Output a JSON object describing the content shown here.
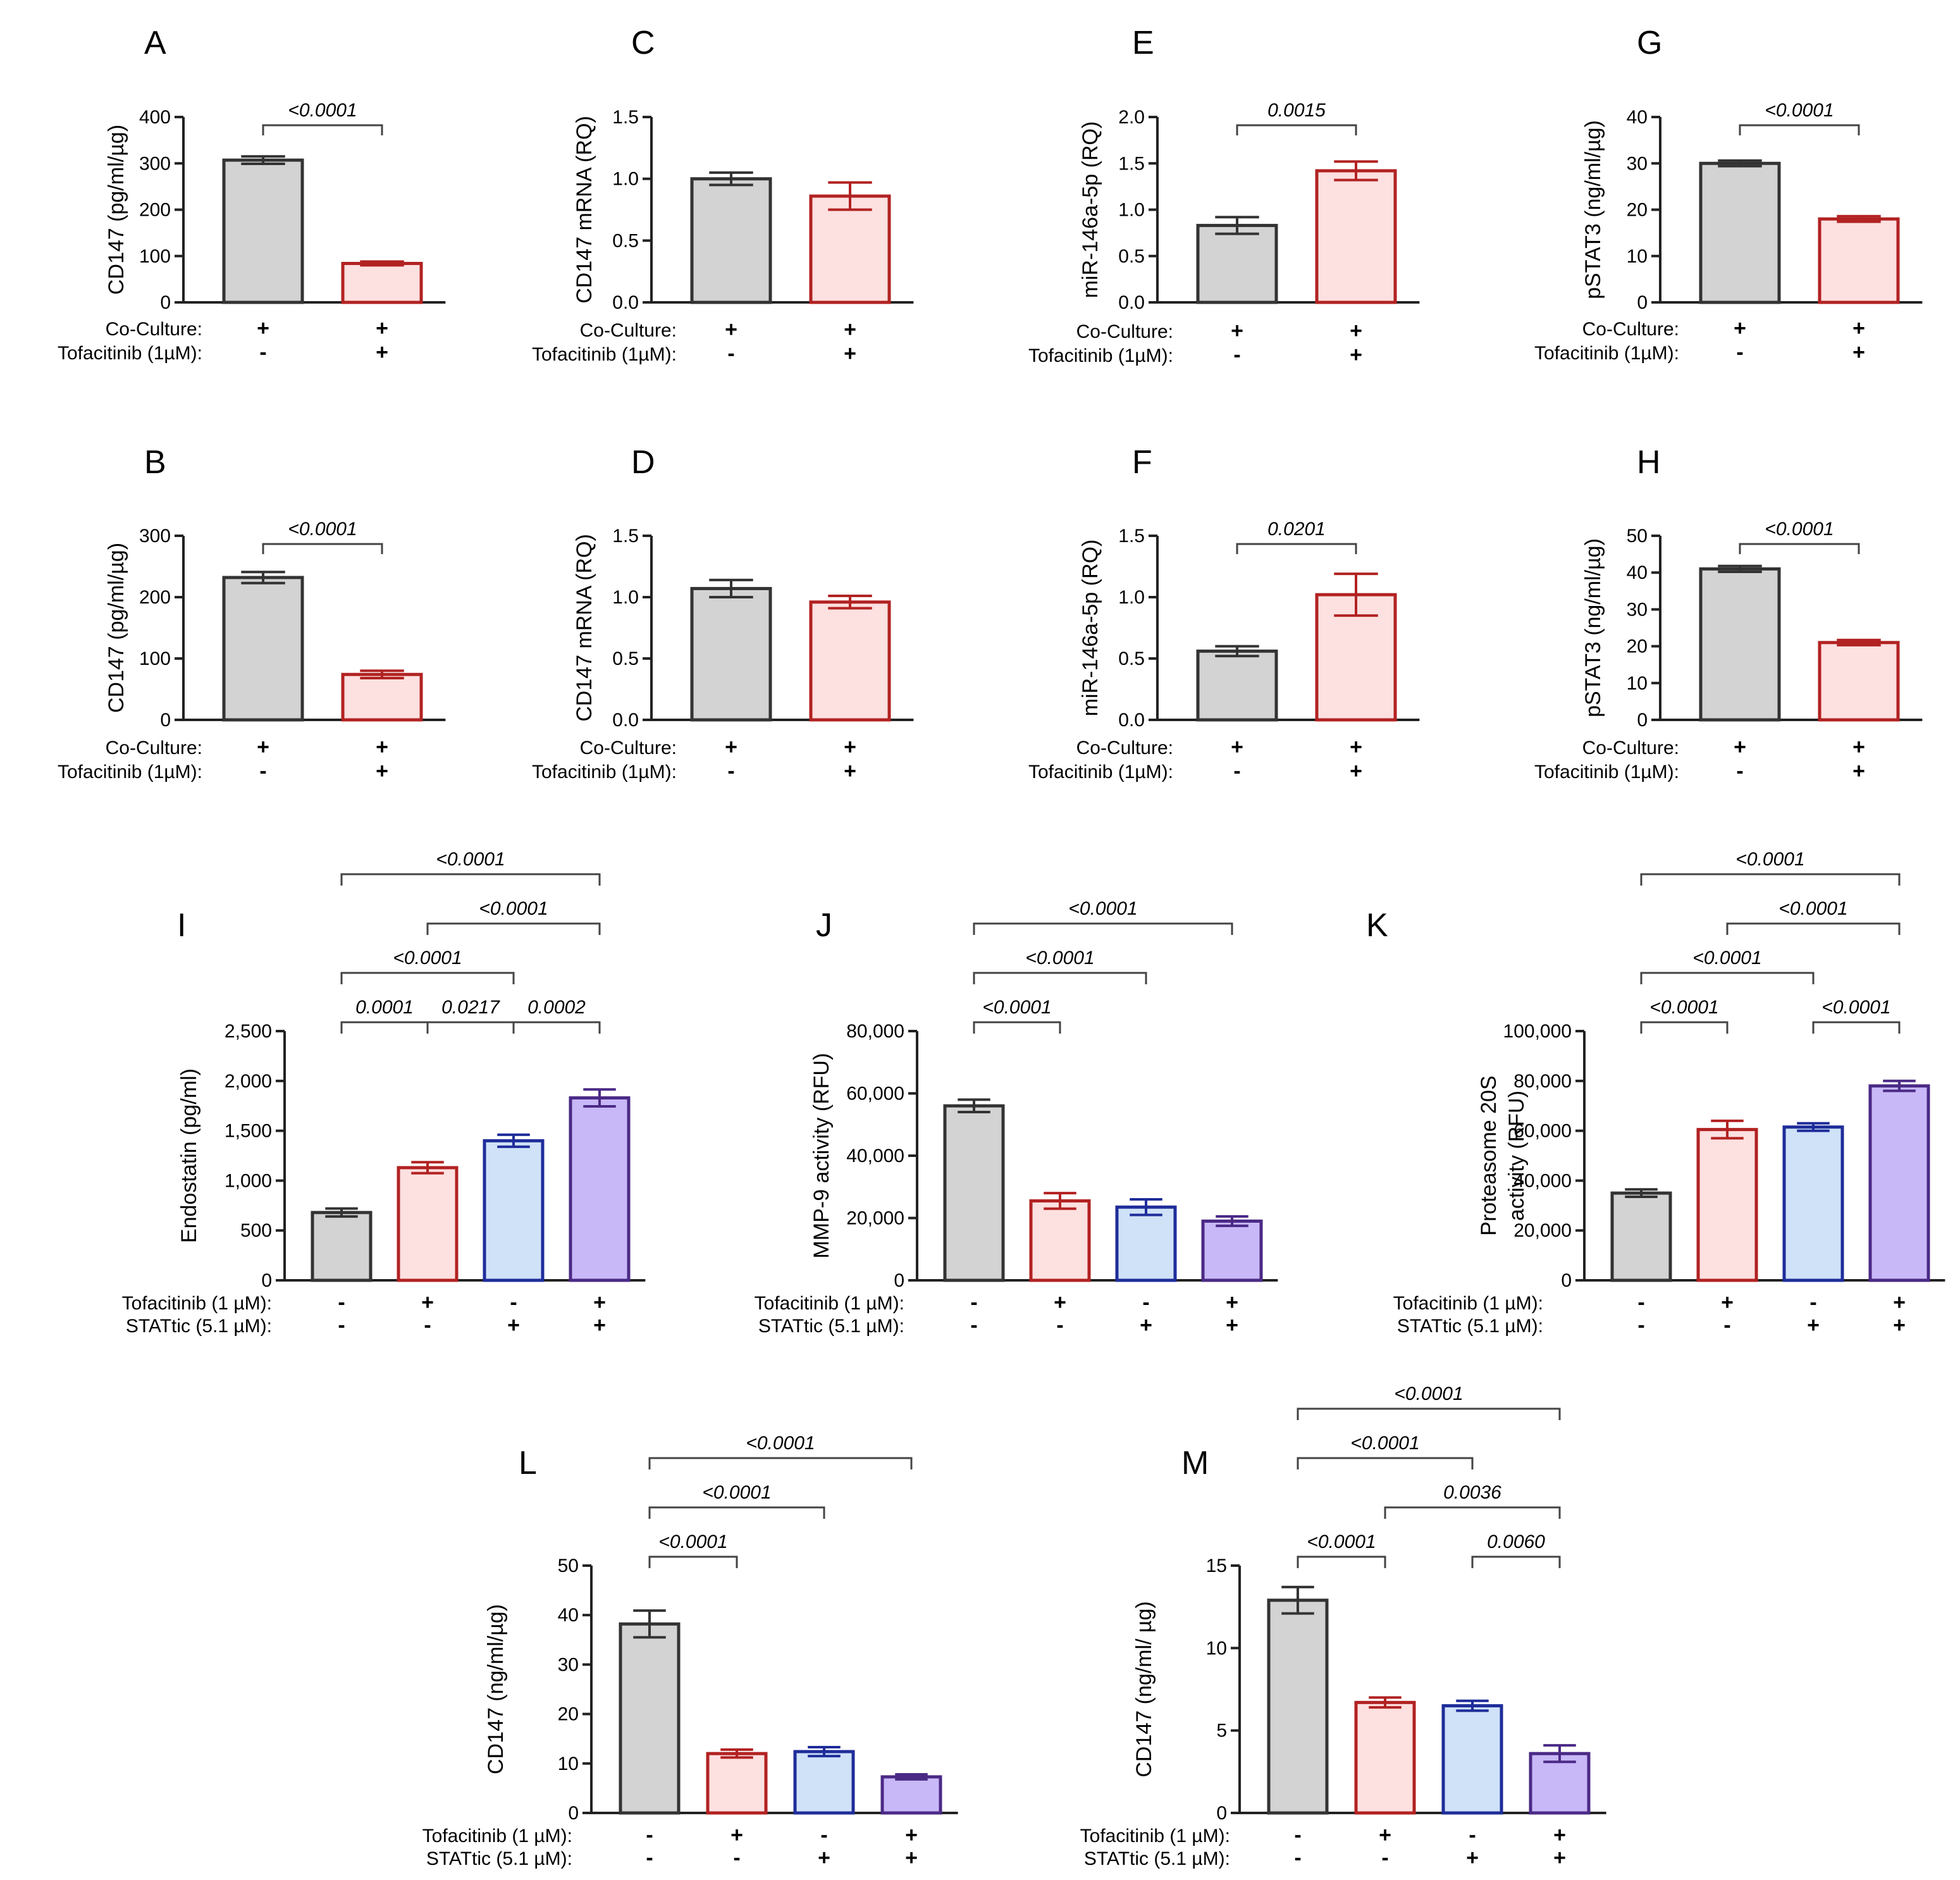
{
  "colors": {
    "ink": "#222222",
    "grey_fill": "#d3d3d3",
    "grey_edge": "#333333",
    "red_fill": "#fde0e0",
    "red_edge": "#b22222",
    "blue_fill": "#cfe2f8",
    "blue_edge": "#1f2d9a",
    "purple_fill": "#c8b8f8",
    "purple_edge": "#4b2a86"
  },
  "chart_data": [
    {
      "panel": "A",
      "type": "bar",
      "ylabel": "CD147 (pg/ml/µg)",
      "ylim": [
        0,
        400
      ],
      "ticks": [
        0,
        100,
        200,
        300,
        400
      ],
      "values": [
        307,
        84
      ],
      "errors": [
        8,
        4
      ],
      "colors": [
        "grey",
        "red"
      ],
      "conditions": [
        {
          "label": "Co-Culture:",
          "signs": [
            "+",
            "+"
          ]
        },
        {
          "label": "Tofacitinib (1µM):",
          "signs": [
            "-",
            "+"
          ]
        }
      ],
      "comparisons": [
        {
          "from": 0,
          "to": 1,
          "p": "<0.0001"
        }
      ]
    },
    {
      "panel": "B",
      "type": "bar",
      "ylabel": "CD147 (pg/ml/µg)",
      "ylim": [
        0,
        300
      ],
      "ticks": [
        0,
        100,
        200,
        300
      ],
      "values": [
        232,
        74
      ],
      "errors": [
        9,
        6
      ],
      "colors": [
        "grey",
        "red"
      ],
      "conditions": [
        {
          "label": "Co-Culture:",
          "signs": [
            "+",
            "+"
          ]
        },
        {
          "label": "Tofacitinib (1µM):",
          "signs": [
            "-",
            "+"
          ]
        }
      ],
      "comparisons": [
        {
          "from": 0,
          "to": 1,
          "p": "<0.0001"
        }
      ]
    },
    {
      "panel": "C",
      "type": "bar",
      "ylabel": "CD147 mRNA (RQ)",
      "ylim": [
        0,
        1.5
      ],
      "ticks": [
        "0.0",
        "0.5",
        "1.0",
        "1.5"
      ],
      "values": [
        1.0,
        0.86
      ],
      "errors": [
        0.05,
        0.11
      ],
      "colors": [
        "grey",
        "red"
      ],
      "conditions": [
        {
          "label": "Co-Culture:",
          "signs": [
            "+",
            "+"
          ]
        },
        {
          "label": "Tofacitinib (1µM):",
          "signs": [
            "-",
            "+"
          ]
        }
      ],
      "comparisons": []
    },
    {
      "panel": "D",
      "type": "bar",
      "ylabel": "CD147 mRNA (RQ)",
      "ylim": [
        0,
        1.5
      ],
      "ticks": [
        "0.0",
        "0.5",
        "1.0",
        "1.5"
      ],
      "values": [
        1.07,
        0.96
      ],
      "errors": [
        0.07,
        0.05
      ],
      "colors": [
        "grey",
        "red"
      ],
      "conditions": [
        {
          "label": "Co-Culture:",
          "signs": [
            "+",
            "+"
          ]
        },
        {
          "label": "Tofacitinib (1µM):",
          "signs": [
            "-",
            "+"
          ]
        }
      ],
      "comparisons": []
    },
    {
      "panel": "E",
      "type": "bar",
      "ylabel": "miR-146a-5p (RQ)",
      "ylim": [
        0,
        2.0
      ],
      "ticks": [
        "0.0",
        "0.5",
        "1.0",
        "1.5",
        "2.0"
      ],
      "values": [
        0.83,
        1.42
      ],
      "errors": [
        0.09,
        0.1
      ],
      "colors": [
        "grey",
        "red"
      ],
      "conditions": [
        {
          "label": "Co-Culture:",
          "signs": [
            "+",
            "+"
          ]
        },
        {
          "label": "Tofacitinib (1µM):",
          "signs": [
            "-",
            "+"
          ]
        }
      ],
      "comparisons": [
        {
          "from": 0,
          "to": 1,
          "p": "0.0015"
        }
      ]
    },
    {
      "panel": "F",
      "type": "bar",
      "ylabel": "miR-146a-5p (RQ)",
      "ylim": [
        0,
        1.5
      ],
      "ticks": [
        "0.0",
        "0.5",
        "1.0",
        "1.5"
      ],
      "values": [
        0.56,
        1.02
      ],
      "errors": [
        0.04,
        0.17
      ],
      "colors": [
        "grey",
        "red"
      ],
      "conditions": [
        {
          "label": "Co-Culture:",
          "signs": [
            "+",
            "+"
          ]
        },
        {
          "label": "Tofacitinib (1µM):",
          "signs": [
            "-",
            "+"
          ]
        }
      ],
      "comparisons": [
        {
          "from": 0,
          "to": 1,
          "p": "0.0201"
        }
      ]
    },
    {
      "panel": "G",
      "type": "bar",
      "ylabel": "pSTAT3 (ng/ml/µg)",
      "ylim": [
        0,
        40
      ],
      "ticks": [
        0,
        10,
        20,
        30,
        40
      ],
      "values": [
        30,
        18
      ],
      "errors": [
        0.6,
        0.6
      ],
      "colors": [
        "grey",
        "red"
      ],
      "conditions": [
        {
          "label": "Co-Culture:",
          "signs": [
            "+",
            "+"
          ]
        },
        {
          "label": "Tofacitinib (1µM):",
          "signs": [
            "-",
            "+"
          ]
        }
      ],
      "comparisons": [
        {
          "from": 0,
          "to": 1,
          "p": "<0.0001"
        }
      ]
    },
    {
      "panel": "H",
      "type": "bar",
      "ylabel": "pSTAT3 (ng/ml/µg)",
      "ylim": [
        0,
        50
      ],
      "ticks": [
        0,
        10,
        20,
        30,
        40,
        50
      ],
      "values": [
        41,
        21
      ],
      "errors": [
        0.8,
        0.7
      ],
      "colors": [
        "grey",
        "red"
      ],
      "conditions": [
        {
          "label": "Co-Culture:",
          "signs": [
            "+",
            "+"
          ]
        },
        {
          "label": "Tofacitinib (1µM):",
          "signs": [
            "-",
            "+"
          ]
        }
      ],
      "comparisons": [
        {
          "from": 0,
          "to": 1,
          "p": "<0.0001"
        }
      ]
    },
    {
      "panel": "I",
      "type": "bar",
      "ylabel": "Endostatin (pg/ml)",
      "ylim": [
        0,
        2500
      ],
      "ticks": [
        "0",
        "500",
        "1,000",
        "1,500",
        "2,000",
        "2,500"
      ],
      "values": [
        680,
        1130,
        1400,
        1830
      ],
      "errors": [
        40,
        55,
        60,
        85
      ],
      "colors": [
        "grey",
        "red",
        "blue",
        "purple"
      ],
      "conditions": [
        {
          "label": "Tofacitinib (1 µM):",
          "signs": [
            "-",
            "+",
            "-",
            "+"
          ]
        },
        {
          "label": "STATtic (5.1 µM):",
          "signs": [
            "-",
            "-",
            "+",
            "+"
          ]
        }
      ],
      "comparisons": [
        {
          "from": 0,
          "to": 1,
          "p": "0.0001"
        },
        {
          "from": 1,
          "to": 2,
          "p": "0.0217"
        },
        {
          "from": 2,
          "to": 3,
          "p": "0.0002"
        },
        {
          "from": 0,
          "to": 2,
          "p": "<0.0001"
        },
        {
          "from": 1,
          "to": 3,
          "p": "<0.0001"
        },
        {
          "from": 0,
          "to": 3,
          "p": "<0.0001"
        }
      ]
    },
    {
      "panel": "J",
      "type": "bar",
      "ylabel": "MMP-9 activity (RFU)",
      "ylim": [
        0,
        80000
      ],
      "ticks": [
        "0",
        "20,000",
        "40,000",
        "60,000",
        "80,000"
      ],
      "values": [
        56000,
        25500,
        23500,
        19000
      ],
      "errors": [
        2000,
        2500,
        2500,
        1500
      ],
      "colors": [
        "grey",
        "red",
        "blue",
        "purple"
      ],
      "conditions": [
        {
          "label": "Tofacitinib (1 µM):",
          "signs": [
            "-",
            "+",
            "-",
            "+"
          ]
        },
        {
          "label": "STATtic (5.1 µM):",
          "signs": [
            "-",
            "-",
            "+",
            "+"
          ]
        }
      ],
      "comparisons": [
        {
          "from": 0,
          "to": 1,
          "p": "<0.0001"
        },
        {
          "from": 0,
          "to": 2,
          "p": "<0.0001"
        },
        {
          "from": 0,
          "to": 3,
          "p": "<0.0001"
        }
      ]
    },
    {
      "panel": "K",
      "type": "bar",
      "ylabel": "Proteasome 20S",
      "ylabel2": "activity (RFU)",
      "ylim": [
        0,
        100000
      ],
      "ticks": [
        "0",
        "20,000",
        "40,000",
        "60,000",
        "80,000",
        "100,000"
      ],
      "values": [
        35000,
        60500,
        61500,
        78000
      ],
      "errors": [
        1500,
        3500,
        1500,
        2000
      ],
      "colors": [
        "grey",
        "red",
        "blue",
        "purple"
      ],
      "conditions": [
        {
          "label": "Tofacitinib (1 µM):",
          "signs": [
            "-",
            "+",
            "-",
            "+"
          ]
        },
        {
          "label": "STATtic (5.1 µM):",
          "signs": [
            "-",
            "-",
            "+",
            "+"
          ]
        }
      ],
      "comparisons": [
        {
          "from": 0,
          "to": 1,
          "p": "<0.0001"
        },
        {
          "from": 2,
          "to": 3,
          "p": "<0.0001"
        },
        {
          "from": 0,
          "to": 2,
          "p": "<0.0001"
        },
        {
          "from": 1,
          "to": 3,
          "p": "<0.0001"
        },
        {
          "from": 0,
          "to": 3,
          "p": "<0.0001"
        }
      ]
    },
    {
      "panel": "L",
      "type": "bar",
      "ylabel": "CD147 (ng/ml/µg)",
      "ylim": [
        0,
        50
      ],
      "ticks": [
        0,
        10,
        20,
        30,
        40,
        50
      ],
      "values": [
        38.2,
        12.0,
        12.4,
        7.3
      ],
      "errors": [
        2.7,
        0.8,
        0.9,
        0.5
      ],
      "colors": [
        "grey",
        "red",
        "blue",
        "purple"
      ],
      "conditions": [
        {
          "label": "Tofacitinib (1 µM):",
          "signs": [
            "-",
            "+",
            "-",
            "+"
          ]
        },
        {
          "label": "STATtic (5.1 µM):",
          "signs": [
            "-",
            "-",
            "+",
            "+"
          ]
        }
      ],
      "comparisons": [
        {
          "from": 0,
          "to": 1,
          "p": "<0.0001"
        },
        {
          "from": 0,
          "to": 2,
          "p": "<0.0001"
        },
        {
          "from": 0,
          "to": 3,
          "p": "<0.0001"
        }
      ]
    },
    {
      "panel": "M",
      "type": "bar",
      "ylabel": "CD147  (ng/ml/ µg)",
      "ylim": [
        0,
        15
      ],
      "ticks": [
        0,
        5,
        10,
        15
      ],
      "values": [
        12.9,
        6.7,
        6.5,
        3.6
      ],
      "errors": [
        0.8,
        0.3,
        0.3,
        0.5
      ],
      "colors": [
        "grey",
        "red",
        "blue",
        "purple"
      ],
      "conditions": [
        {
          "label": "Tofacitinib (1 µM):",
          "signs": [
            "-",
            "+",
            "-",
            "+"
          ]
        },
        {
          "label": "STATtic (5.1 µM):",
          "signs": [
            "-",
            "-",
            "+",
            "+"
          ]
        }
      ],
      "comparisons": [
        {
          "from": 2,
          "to": 3,
          "p": "0.0060"
        },
        {
          "from": 0,
          "to": 1,
          "p": "<0.0001"
        },
        {
          "from": 1,
          "to": 3,
          "p": "0.0036"
        },
        {
          "from": 0,
          "to": 2,
          "p": "<0.0001"
        },
        {
          "from": 0,
          "to": 3,
          "p": "<0.0001"
        }
      ]
    }
  ]
}
